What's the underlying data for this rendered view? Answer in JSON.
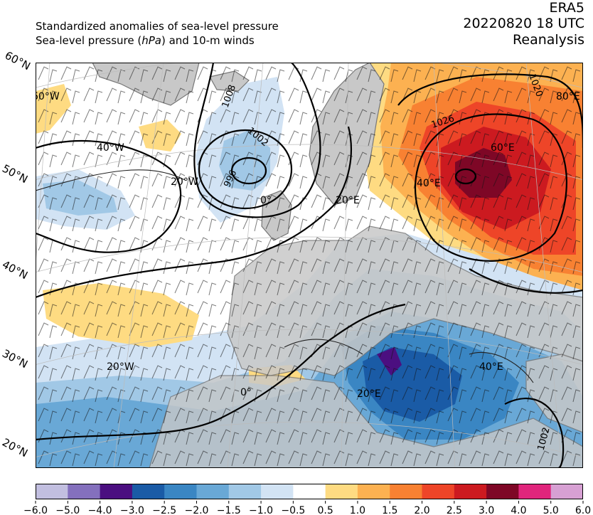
{
  "header": {
    "left_line1": "Standardized anomalies of sea-level pressure",
    "left_line2_a": "Sea-level pressure (",
    "left_line2_unit": "hPa",
    "left_line2_b": ") and 10-m winds",
    "right_line1": "ERA5",
    "right_line2": "20220820 18 UTC",
    "right_line3": "Reanalysis"
  },
  "latitude_labels": [
    "60°N",
    "50°N",
    "40°N",
    "30°N",
    "20°N"
  ],
  "longitude_labels": [
    "60°W",
    "40°W",
    "20°W",
    "0°",
    "20°E",
    "40°E",
    "60°E",
    "80°E",
    "20°W",
    "0°",
    "20°E",
    "40°E"
  ],
  "isobar_labels": [
    "1008",
    "1002",
    "996",
    "1026",
    "1020",
    "1002"
  ],
  "colorbar": {
    "ticks": [
      "−6.0",
      "−5.0",
      "−4.0",
      "−3.0",
      "−2.5",
      "−2.0",
      "−1.5",
      "−1.0",
      "−0.5",
      "0.5",
      "1.0",
      "1.5",
      "2.0",
      "2.5",
      "3.0",
      "4.0",
      "5.0",
      "6.0"
    ],
    "colors": [
      "#c2bfe0",
      "#8470bd",
      "#4b0f80",
      "#1a5ba6",
      "#3a86c3",
      "#69a8d6",
      "#a1c8e6",
      "#d2e3f4",
      "#ffffff",
      "#fedb82",
      "#fcb151",
      "#f88132",
      "#ee4528",
      "#cc1a20",
      "#7e0726",
      "#e0257c",
      "#d7a0d3"
    ]
  }
}
